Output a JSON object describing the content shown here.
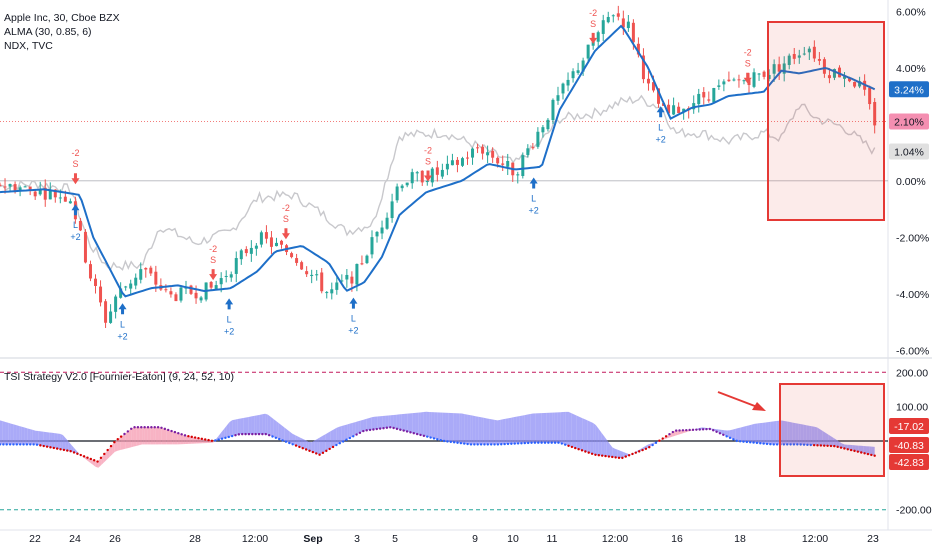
{
  "legend": {
    "symbol": "Apple Inc, 30, Cboe BZX",
    "alma": "ALMA (30, 0.85, 6)",
    "compare": "NDX, TVC",
    "indicator": "TSI Strategy V2.0 [Fournier-Eaton] (9, 24, 52, 10)"
  },
  "colors": {
    "up": "#26a69a",
    "down": "#ef5350",
    "alma": "#1e6fc8",
    "compare": "#c8c8cc",
    "tsi_fill_pos": "#8d8df5",
    "tsi_fill_neg": "#f59ab0",
    "tsi_dots_blue": "#2962ff",
    "tsi_dots_red": "#d50000",
    "tsi_dots_purple": "#7b1fa2",
    "highlight": "#e53935",
    "label_blue": "#1e6fc8",
    "label_pink": "#f48fb1",
    "label_gray": "#e0e0e0",
    "label_red": "#e53935"
  },
  "chart_data": [
    {
      "type": "candlestick",
      "title": "Apple Inc, 30, Cboe BZX",
      "y_unit": "%",
      "ylim": [
        -6.2,
        6.4
      ],
      "y_ticks": [
        "6.00%",
        "4.00%",
        "2.00%",
        "0.00%",
        "-2.00%",
        "-4.00%",
        "-6.00%"
      ],
      "x_ticks": [
        "22",
        "24",
        "26",
        "28",
        "12:00",
        "Sep",
        "3",
        "5",
        "9",
        "10",
        "11",
        "12:00",
        "16",
        "18",
        "12:00",
        "23"
      ],
      "last_value_labels": [
        "3.24%",
        "2.10%",
        "1.04%"
      ],
      "series": [
        {
          "name": "ALMA (30, 0.85, 6)",
          "style": "line",
          "color": "#1e6fc8",
          "keypoints": [
            [
              0,
              -0.4
            ],
            [
              0.05,
              -0.3
            ],
            [
              0.09,
              -0.5
            ],
            [
              0.105,
              -2.0
            ],
            [
              0.14,
              -4.1
            ],
            [
              0.17,
              -3.8
            ],
            [
              0.2,
              -3.7
            ],
            [
              0.23,
              -3.9
            ],
            [
              0.26,
              -3.8
            ],
            [
              0.29,
              -3.2
            ],
            [
              0.31,
              -2.5
            ],
            [
              0.34,
              -2.3
            ],
            [
              0.37,
              -2.9
            ],
            [
              0.39,
              -3.9
            ],
            [
              0.41,
              -3.6
            ],
            [
              0.43,
              -2.7
            ],
            [
              0.45,
              -1.2
            ],
            [
              0.48,
              -0.4
            ],
            [
              0.52,
              0.0
            ],
            [
              0.55,
              0.6
            ],
            [
              0.58,
              0.4
            ],
            [
              0.61,
              0.5
            ],
            [
              0.63,
              2.5
            ],
            [
              0.67,
              4.6
            ],
            [
              0.7,
              5.5
            ],
            [
              0.73,
              4.0
            ],
            [
              0.755,
              2.2
            ],
            [
              0.78,
              2.6
            ],
            [
              0.8,
              2.7
            ],
            [
              0.82,
              3.0
            ],
            [
              0.86,
              3.15
            ],
            [
              0.88,
              3.9
            ],
            [
              0.9,
              3.8
            ],
            [
              0.93,
              4.0
            ],
            [
              0.96,
              3.6
            ],
            [
              0.985,
              3.24
            ]
          ]
        },
        {
          "name": "NDX, TVC",
          "style": "line",
          "color": "#c8c8cc",
          "keypoints": [
            [
              0,
              -0.2
            ],
            [
              0.04,
              -0.1
            ],
            [
              0.08,
              -0.3
            ],
            [
              0.1,
              -2.2
            ],
            [
              0.12,
              -3.0
            ],
            [
              0.16,
              -3.0
            ],
            [
              0.18,
              -1.6
            ],
            [
              0.22,
              -2.2
            ],
            [
              0.26,
              -1.8
            ],
            [
              0.29,
              -0.6
            ],
            [
              0.33,
              -0.5
            ],
            [
              0.36,
              -1.1
            ],
            [
              0.39,
              -1.8
            ],
            [
              0.42,
              -1.5
            ],
            [
              0.45,
              1.6
            ],
            [
              0.5,
              1.7
            ],
            [
              0.54,
              1.2
            ],
            [
              0.58,
              0.6
            ],
            [
              0.61,
              1.4
            ],
            [
              0.63,
              2.2
            ],
            [
              0.67,
              2.4
            ],
            [
              0.7,
              2.8
            ],
            [
              0.72,
              2.9
            ],
            [
              0.745,
              2.6
            ],
            [
              0.76,
              1.7
            ],
            [
              0.79,
              1.7
            ],
            [
              0.82,
              1.4
            ],
            [
              0.86,
              1.7
            ],
            [
              0.88,
              1.5
            ],
            [
              0.9,
              2.7
            ],
            [
              0.92,
              2.2
            ],
            [
              0.95,
              1.9
            ],
            [
              0.985,
              1.04
            ]
          ]
        },
        {
          "name": "Close",
          "style": "candles",
          "keypoints": [
            [
              0,
              -0.1
            ],
            [
              0.08,
              -0.6
            ],
            [
              0.1,
              -3.2
            ],
            [
              0.12,
              -5.0
            ],
            [
              0.13,
              -4.1
            ],
            [
              0.16,
              -3.1
            ],
            [
              0.19,
              -4.1
            ],
            [
              0.24,
              -3.8
            ],
            [
              0.29,
              -2.0
            ],
            [
              0.33,
              -2.6
            ],
            [
              0.37,
              -4.0
            ],
            [
              0.4,
              -3.3
            ],
            [
              0.43,
              -1.5
            ],
            [
              0.45,
              0.0
            ],
            [
              0.5,
              0.3
            ],
            [
              0.54,
              1.2
            ],
            [
              0.58,
              0.3
            ],
            [
              0.62,
              2.5
            ],
            [
              0.66,
              4.5
            ],
            [
              0.69,
              6.0
            ],
            [
              0.71,
              5.4
            ],
            [
              0.72,
              4.3
            ],
            [
              0.73,
              3.3
            ],
            [
              0.75,
              2.3
            ],
            [
              0.78,
              2.8
            ],
            [
              0.82,
              3.4
            ],
            [
              0.86,
              3.8
            ],
            [
              0.88,
              4.1
            ],
            [
              0.91,
              4.8
            ],
            [
              0.93,
              3.9
            ],
            [
              0.95,
              3.8
            ],
            [
              0.97,
              3.3
            ],
            [
              0.985,
              2.1
            ]
          ]
        }
      ],
      "signals": [
        {
          "kind": "long",
          "x": 0.085,
          "label_lines": [
            "L",
            "+2"
          ]
        },
        {
          "kind": "short",
          "x": 0.085,
          "label_lines": [
            "-2",
            "S"
          ]
        },
        {
          "kind": "long",
          "x": 0.138,
          "label_lines": [
            "L",
            "+2"
          ]
        },
        {
          "kind": "short",
          "x": 0.24,
          "label_lines": [
            "-2",
            "S"
          ]
        },
        {
          "kind": "long",
          "x": 0.258,
          "label_lines": [
            "L",
            "+2"
          ]
        },
        {
          "kind": "short",
          "x": 0.322,
          "label_lines": [
            "-2",
            "S"
          ]
        },
        {
          "kind": "long",
          "x": 0.398,
          "label_lines": [
            "L",
            "+2"
          ]
        },
        {
          "kind": "short",
          "x": 0.482,
          "label_lines": [
            "-2",
            "S"
          ]
        },
        {
          "kind": "long",
          "x": 0.601,
          "label_lines": [
            "L",
            "+2"
          ]
        },
        {
          "kind": "short",
          "x": 0.668,
          "label_lines": [
            "-2",
            "S"
          ]
        },
        {
          "kind": "long",
          "x": 0.744,
          "label_lines": [
            "L",
            "+2"
          ]
        },
        {
          "kind": "short",
          "x": 0.842,
          "label_lines": [
            "-2",
            "S"
          ]
        }
      ]
    },
    {
      "type": "area",
      "title": "TSI Strategy V2.0 [Fournier-Eaton] (9, 24, 52, 10)",
      "ylim": [
        -230,
        230
      ],
      "y_ticks": [
        "200.00",
        "100.00",
        "-200.00"
      ],
      "levels": [
        200,
        -200
      ],
      "last_value_labels": [
        "-17.02",
        "-40.83",
        "-42.83"
      ],
      "series": [
        {
          "name": "TSI",
          "style": "line",
          "keypoints": [
            [
              0,
              60
            ],
            [
              0.04,
              30
            ],
            [
              0.07,
              20
            ],
            [
              0.09,
              -40
            ],
            [
              0.11,
              -80
            ],
            [
              0.13,
              -30
            ],
            [
              0.16,
              -10
            ],
            [
              0.2,
              -10
            ],
            [
              0.24,
              -5
            ],
            [
              0.26,
              60
            ],
            [
              0.3,
              80
            ],
            [
              0.33,
              20
            ],
            [
              0.35,
              -5
            ],
            [
              0.38,
              40
            ],
            [
              0.42,
              70
            ],
            [
              0.48,
              85
            ],
            [
              0.52,
              80
            ],
            [
              0.56,
              60
            ],
            [
              0.6,
              80
            ],
            [
              0.64,
              85
            ],
            [
              0.67,
              50
            ],
            [
              0.69,
              -20
            ],
            [
              0.71,
              -40
            ],
            [
              0.73,
              -10
            ],
            [
              0.76,
              15
            ],
            [
              0.79,
              40
            ],
            [
              0.82,
              30
            ],
            [
              0.85,
              50
            ],
            [
              0.88,
              60
            ],
            [
              0.92,
              40
            ],
            [
              0.95,
              -10
            ],
            [
              0.985,
              -17.02
            ]
          ]
        },
        {
          "name": "Signal",
          "style": "dots",
          "keypoints": [
            [
              0,
              -10
            ],
            [
              0.04,
              -10
            ],
            [
              0.08,
              -30
            ],
            [
              0.11,
              -60
            ],
            [
              0.13,
              0
            ],
            [
              0.15,
              40
            ],
            [
              0.18,
              40
            ],
            [
              0.21,
              15
            ],
            [
              0.24,
              0
            ],
            [
              0.27,
              20
            ],
            [
              0.3,
              20
            ],
            [
              0.33,
              -10
            ],
            [
              0.36,
              -40
            ],
            [
              0.38,
              -10
            ],
            [
              0.41,
              30
            ],
            [
              0.44,
              40
            ],
            [
              0.47,
              20
            ],
            [
              0.5,
              0
            ],
            [
              0.53,
              -10
            ],
            [
              0.56,
              -10
            ],
            [
              0.6,
              -5
            ],
            [
              0.63,
              -5
            ],
            [
              0.67,
              -40
            ],
            [
              0.7,
              -50
            ],
            [
              0.73,
              -20
            ],
            [
              0.76,
              30
            ],
            [
              0.8,
              35
            ],
            [
              0.83,
              0
            ],
            [
              0.87,
              -10
            ],
            [
              0.9,
              -10
            ],
            [
              0.94,
              -15
            ],
            [
              0.985,
              -42.83
            ]
          ]
        }
      ]
    }
  ]
}
